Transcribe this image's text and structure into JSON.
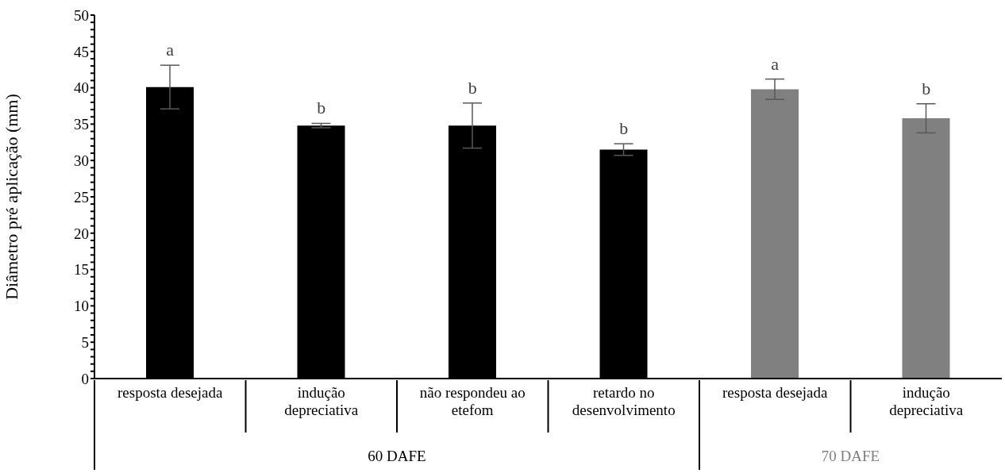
{
  "chart_data": {
    "type": "bar",
    "ylabel": "Diâmetro pré aplicação (mm)",
    "categories": [
      "resposta desejada",
      "indução depreciativa",
      "não respondeu ao etefom",
      "retardo no desenvolvimento",
      "resposta desejada",
      "indução depreciativa"
    ],
    "series": [
      {
        "name": "60 DAFE",
        "color": "#000000",
        "values": [
          40.1,
          34.8,
          34.8,
          31.5,
          null,
          null
        ],
        "errors": [
          3,
          0.3,
          3.1,
          0.8,
          null,
          null
        ]
      },
      {
        "name": "70 DAFE",
        "color": "#808080",
        "values": [
          null,
          null,
          null,
          null,
          39.8,
          35.8
        ],
        "errors": [
          null,
          null,
          null,
          null,
          1.4,
          2
        ]
      }
    ],
    "ylim": [
      0,
      50
    ],
    "yticks": [
      0,
      {
        "value": 1,
        "label": null
      },
      {
        "value": 2,
        "label": null
      },
      {
        "value": 3,
        "label": null
      },
      {
        "value": 4,
        "label": null
      },
      5,
      {
        "value": 6,
        "label": null
      },
      {
        "value": 7,
        "label": null
      },
      {
        "value": 8,
        "label": null
      },
      {
        "value": 9,
        "label": null
      },
      10,
      {
        "value": 11,
        "label": null
      },
      {
        "value": 12,
        "label": null
      },
      {
        "value": 13,
        "label": null
      },
      {
        "value": 14,
        "label": null
      },
      15,
      {
        "value": 16,
        "label": null
      },
      {
        "value": 17,
        "label": null
      },
      {
        "value": 18,
        "label": null
      },
      {
        "value": 19,
        "label": null
      },
      20,
      {
        "value": 21,
        "label": null
      },
      {
        "value": 22,
        "label": null
      },
      {
        "value": 23,
        "label": null
      },
      {
        "value": 24,
        "label": null
      },
      25,
      {
        "value": 26,
        "label": null
      },
      {
        "value": 27,
        "label": null
      },
      {
        "value": 28,
        "label": null
      },
      {
        "value": 29,
        "label": null
      },
      30,
      {
        "value": 31,
        "label": null
      },
      {
        "value": 32,
        "label": null
      },
      {
        "value": 33,
        "label": null
      },
      {
        "value": 34,
        "label": null
      },
      35,
      {
        "value": 36,
        "label": null
      },
      {
        "value": 37,
        "label": null
      },
      {
        "value": 38,
        "label": null
      },
      {
        "value": 39,
        "label": null
      },
      40,
      {
        "value": 41,
        "label": null
      },
      {
        "value": 42,
        "label": null
      },
      {
        "value": 43,
        "label": null
      },
      {
        "value": 44,
        "label": null
      },
      45,
      {
        "value": 46,
        "label": null
      },
      {
        "value": 47,
        "label": null
      },
      {
        "value": 48,
        "label": null
      },
      {
        "value": 49,
        "label": null
      },
      50
    ],
    "annotations": [
      "a",
      "b",
      "b",
      "b",
      "a",
      "b"
    ],
    "grid": false,
    "legend": false
  }
}
